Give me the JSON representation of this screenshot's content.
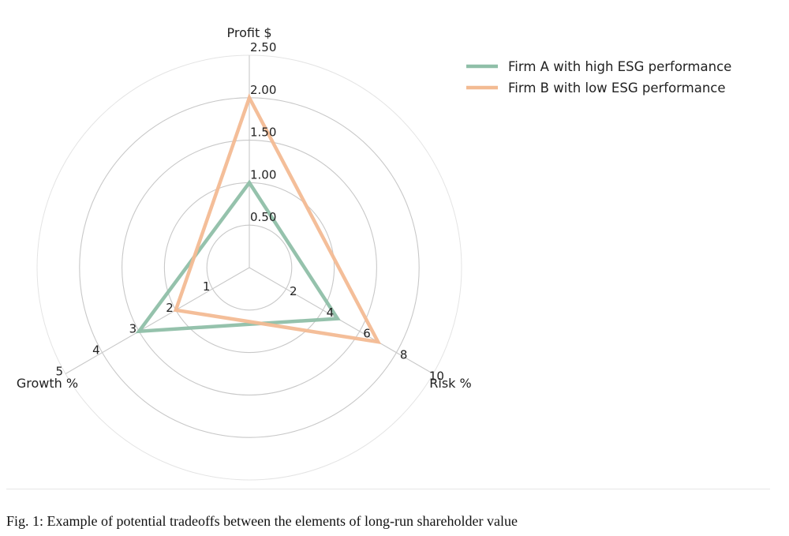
{
  "chart_data": {
    "type": "radar",
    "axes": [
      {
        "name": "Profit $",
        "ticks": [
          "0.50",
          "1.00",
          "1.50",
          "2.00",
          "2.50"
        ],
        "max": 2.5
      },
      {
        "name": "Risk %",
        "ticks": [
          "2",
          "4",
          "6",
          "8",
          "10"
        ],
        "max": 10
      },
      {
        "name": "Growth %",
        "ticks": [
          "1",
          "2",
          "3",
          "4",
          "5"
        ],
        "max": 5
      }
    ],
    "series": [
      {
        "name": "Firm A with high ESG performance",
        "color": "#8fbfa8",
        "values": [
          1.0,
          4.8,
          3.0
        ]
      },
      {
        "name": "Firm B with low ESG performance",
        "color": "#f3bb93",
        "values": [
          2.0,
          7.0,
          2.0
        ]
      }
    ],
    "grid": true,
    "legend_position": "top-right"
  },
  "caption": "Fig. 1: Example of potential tradeoffs between the elements of long-run shareholder value"
}
